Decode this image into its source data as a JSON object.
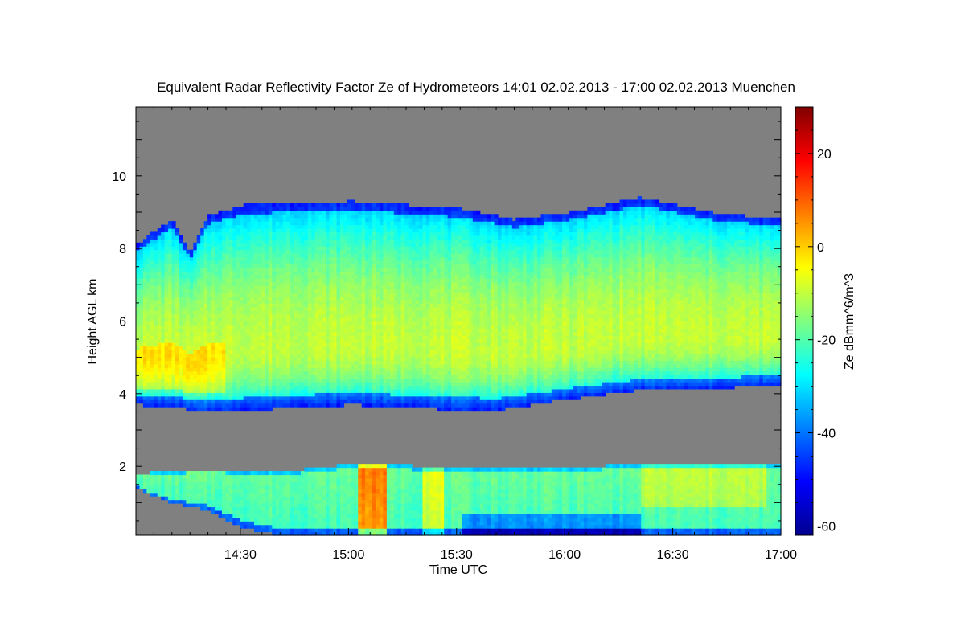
{
  "chart_data": {
    "type": "heatmap",
    "title": "Equivalent Radar Reflectivity Factor Ze of Hydrometeors   14:01 02.02.2013 - 17:00 02.02.2013 Muenchen",
    "xlabel": "Time UTC",
    "ylabel": "Height AGL km",
    "colorbar_label": "Ze dBmm^6/m^3",
    "x_ticks": [
      "14:30",
      "15:00",
      "15:30",
      "16:00",
      "16:30",
      "17:00"
    ],
    "x_tick_minutes": [
      29,
      59,
      89,
      119,
      149,
      179
    ],
    "xlim_minutes": [
      0,
      179
    ],
    "y_ticks": [
      2,
      4,
      6,
      8,
      10
    ],
    "ylim": [
      0.1,
      11.9
    ],
    "colorbar_ticks": [
      20,
      0,
      -20,
      -40,
      -60
    ],
    "colorbar_range": [
      -62,
      30
    ],
    "background_color": "#808080",
    "layers": [
      {
        "name": "upper cloud",
        "base_km": {
          "minutes": [
            0,
            10,
            20,
            40,
            60,
            80,
            100,
            120,
            140,
            160,
            179
          ],
          "values": [
            3.7,
            3.65,
            3.5,
            3.6,
            3.7,
            3.6,
            3.55,
            3.85,
            4.1,
            4.15,
            4.25
          ]
        },
        "top_km": {
          "minutes": [
            0,
            10,
            15,
            20,
            30,
            60,
            90,
            105,
            120,
            140,
            160,
            179
          ],
          "values": [
            8.1,
            8.8,
            7.9,
            8.9,
            9.2,
            9.3,
            9.1,
            8.8,
            9.0,
            9.4,
            9.0,
            8.8
          ]
        },
        "peak_dbz": -10,
        "max_dbz": 2
      },
      {
        "name": "lower precipitation",
        "base_km": {
          "minutes": [
            0,
            10,
            20,
            30,
            40,
            60,
            90,
            110,
            120,
            140,
            160,
            179
          ],
          "values": [
            1.4,
            1.0,
            0.8,
            0.3,
            0.1,
            0.1,
            0.1,
            0.1,
            0.1,
            0.1,
            0.1,
            0.1
          ]
        },
        "top_km": {
          "minutes": [
            0,
            20,
            40,
            55,
            60,
            80,
            120,
            150,
            179
          ],
          "values": [
            1.8,
            1.9,
            1.85,
            2.0,
            2.1,
            2.0,
            2.0,
            2.05,
            2.1
          ]
        },
        "peak_dbz": -20,
        "max_dbz": 10
      }
    ]
  }
}
